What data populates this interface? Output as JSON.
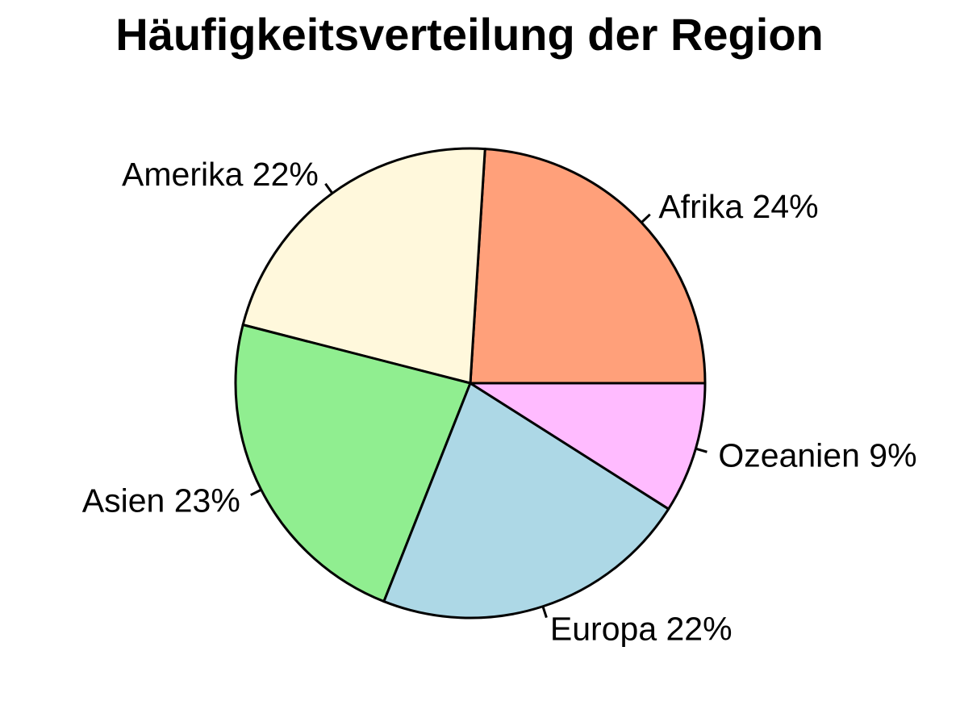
{
  "chart_data": {
    "type": "pie",
    "title": "Häufigkeitsverteilung der Region",
    "direction": "counterclockwise",
    "start": "east",
    "legend": "none",
    "slices": [
      {
        "label": "Afrika 24%",
        "category": "Afrika",
        "percent": 24,
        "value": 24,
        "color": "#FFA07A"
      },
      {
        "label": "Amerika 22%",
        "category": "Amerika",
        "percent": 22,
        "value": 22,
        "color": "#FFF8DC"
      },
      {
        "label": "Asien 23%",
        "category": "Asien",
        "percent": 23,
        "value": 23,
        "color": "#90EE90"
      },
      {
        "label": "Europa 22%",
        "category": "Europa",
        "percent": 22,
        "value": 22,
        "color": "#ADD8E6"
      },
      {
        "label": "Ozeanien 9%",
        "category": "Ozeanien",
        "percent": 9,
        "value": 9,
        "color": "#FFBBFF"
      }
    ]
  }
}
